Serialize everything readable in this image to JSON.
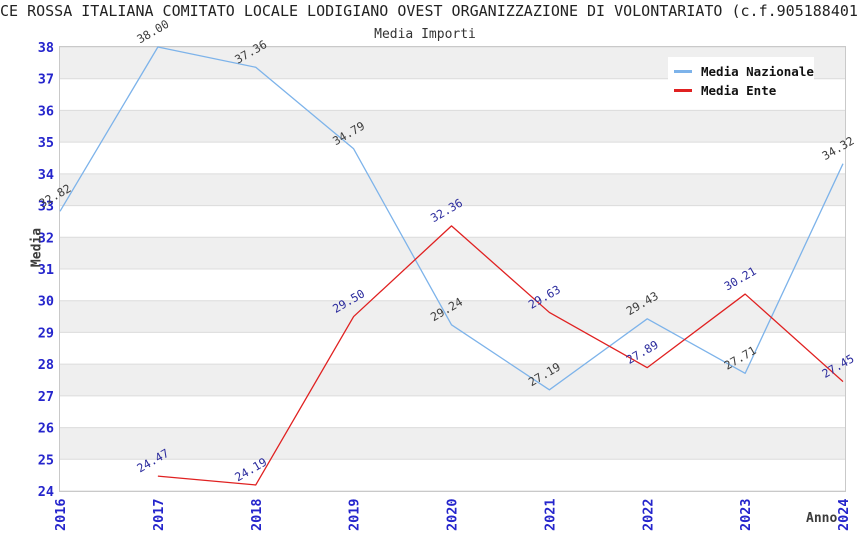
{
  "header": {
    "title": "CE ROSSA ITALIANA COMITATO LOCALE LODIGIANO OVEST ORGANIZZAZIONE DI VOLONTARIATO (c.f.905188401",
    "subtitle": "Media Importi"
  },
  "chart_data": {
    "type": "line",
    "title": "Media Importi",
    "xlabel": "Anno",
    "ylabel": "Media",
    "ylim": [
      24,
      38
    ],
    "ytick_step": 1,
    "yticks": [
      24,
      25,
      26,
      27,
      28,
      29,
      30,
      31,
      32,
      33,
      34,
      35,
      36,
      37,
      38
    ],
    "categories": [
      "2016",
      "2017",
      "2018",
      "2019",
      "2020",
      "2021",
      "2022",
      "2023",
      "2024"
    ],
    "series": [
      {
        "name": "Media Nazionale",
        "color": "#7db3ea",
        "label_color": "#3c3c3c",
        "values": [
          32.82,
          38.0,
          37.36,
          34.79,
          29.24,
          27.19,
          29.43,
          27.71,
          34.32
        ]
      },
      {
        "name": "Media Ente",
        "color": "#e02121",
        "label_color": "#2b2b9d",
        "values": [
          null,
          24.47,
          24.19,
          29.5,
          32.36,
          29.63,
          27.89,
          30.21,
          27.45
        ]
      }
    ],
    "legend_position": "top-right",
    "grid": "alternating horizontal bands with gridlines at each integer",
    "styles": {
      "band_color": "#efefef",
      "grid_color": "#dcdcdc",
      "border_color": "#c9c9c9",
      "tick_label_color": "#2525cc",
      "axis_label_color": "#3c3c3c"
    }
  }
}
